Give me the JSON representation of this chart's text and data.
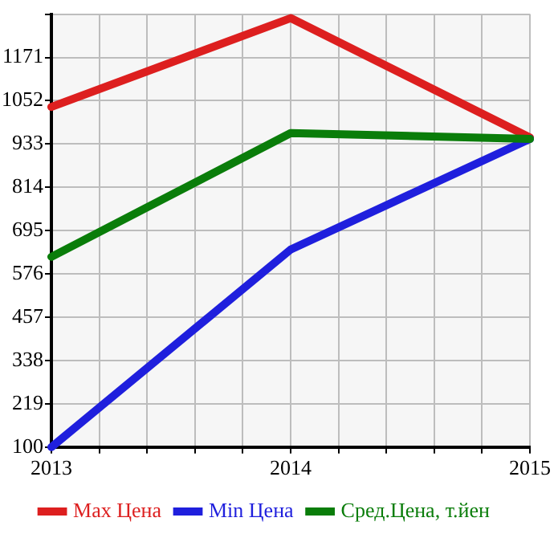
{
  "chart_data": {
    "type": "line",
    "x": [
      2013,
      2014,
      2015
    ],
    "series": [
      {
        "name": "Max Цена",
        "color": "#dd1f1f",
        "values": [
          1035,
          1279,
          951
        ]
      },
      {
        "name": "Min Цена",
        "color": "#1f1fdd",
        "values": [
          100,
          643,
          947
        ]
      },
      {
        "name": "Сред.Цена, т.йен",
        "color": "#0a7d0a",
        "values": [
          623,
          963,
          947
        ]
      }
    ],
    "xlim": [
      2013,
      2015
    ],
    "xticks": [
      2013,
      {
        "value": 2013.2,
        "label": null
      },
      {
        "value": 2013.4,
        "label": null
      },
      {
        "value": 2013.6,
        "label": null
      },
      {
        "value": 2013.8,
        "label": null
      },
      2014,
      {
        "value": 2014.2,
        "label": null
      },
      {
        "value": 2014.4,
        "label": null
      },
      {
        "value": 2014.6,
        "label": null
      },
      {
        "value": 2014.8,
        "label": null
      },
      2015
    ],
    "ylim": [
      100,
      1290
    ],
    "yticks": [
      100,
      219,
      338,
      457,
      576,
      695,
      814,
      933,
      1052,
      1171,
      {
        "value": 1290,
        "label": null
      }
    ],
    "grid": true,
    "legend": "bottom",
    "marker": "none",
    "line_style": "solid"
  }
}
